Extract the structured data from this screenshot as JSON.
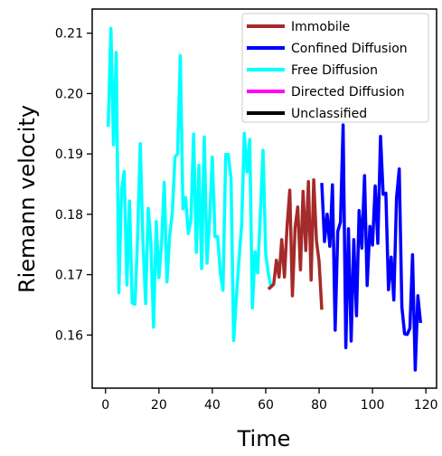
{
  "chart_data": {
    "type": "line",
    "title": "",
    "xlabel": "Time",
    "ylabel": "Riemann velocity",
    "xlim": [
      -5,
      124
    ],
    "ylim": [
      0.1512,
      0.214
    ],
    "xticks": [
      0,
      20,
      40,
      60,
      80,
      100,
      120
    ],
    "yticks": [
      0.16,
      0.17,
      0.18,
      0.19,
      0.2,
      0.21
    ],
    "xtick_labels": [
      "0",
      "20",
      "40",
      "60",
      "80",
      "100",
      "120"
    ],
    "ytick_labels": [
      "0.16",
      "0.17",
      "0.18",
      "0.19",
      "0.20",
      "0.21"
    ],
    "grid": false,
    "legend_position": "top-right",
    "legend": [
      {
        "label": "Immobile",
        "color": "#a52a2a"
      },
      {
        "label": "Confined Diffusion",
        "color": "#0000ff"
      },
      {
        "label": "Free Diffusion",
        "color": "#00ffff"
      },
      {
        "label": "Directed Diffusion",
        "color": "#ff00ff"
      },
      {
        "label": "Unclassified",
        "color": "#000000"
      }
    ],
    "series": [
      {
        "name": "Free Diffusion",
        "color": "#00ffff",
        "x": [
          1,
          2,
          3,
          4,
          5,
          6,
          7,
          8,
          9,
          10,
          11,
          12,
          13,
          14,
          15,
          16,
          17,
          18,
          19,
          20,
          21,
          22,
          23,
          24,
          25,
          26,
          27,
          28,
          29,
          30,
          31,
          32,
          33,
          34,
          35,
          36,
          37,
          38,
          39,
          40,
          41,
          42,
          43,
          44,
          45,
          46,
          47,
          48,
          49,
          50,
          51,
          52,
          53,
          54,
          55,
          56,
          57,
          58,
          59,
          60,
          61,
          62
        ],
        "y": [
          0.1945,
          0.2108,
          0.1915,
          0.2068,
          0.167,
          0.184,
          0.1871,
          0.1683,
          0.1822,
          0.1653,
          0.1651,
          0.1761,
          0.1917,
          0.1757,
          0.1652,
          0.181,
          0.1752,
          0.1613,
          0.1788,
          0.1695,
          0.1753,
          0.1853,
          0.1688,
          0.1764,
          0.1802,
          0.1895,
          0.19,
          0.2063,
          0.1809,
          0.1828,
          0.1768,
          0.1791,
          0.1933,
          0.1737,
          0.1881,
          0.171,
          0.1928,
          0.1719,
          0.1795,
          0.1895,
          0.1763,
          0.1763,
          0.1702,
          0.1674,
          0.1899,
          0.1899,
          0.1859,
          0.1591,
          0.1662,
          0.1724,
          0.1784,
          0.1934,
          0.187,
          0.1924,
          0.1645,
          0.1738,
          0.1703,
          0.1803,
          0.1906,
          0.1734,
          0.1702,
          0.1678
        ]
      },
      {
        "name": "Immobile",
        "color": "#a52a2a",
        "x": [
          61,
          62,
          63,
          64,
          65,
          66,
          67,
          68,
          69,
          70,
          71,
          72,
          73,
          74,
          75,
          76,
          77,
          78,
          79,
          80,
          81
        ],
        "y": [
          0.1676,
          0.168,
          0.1684,
          0.1724,
          0.1696,
          0.1758,
          0.1696,
          0.178,
          0.184,
          0.1665,
          0.1778,
          0.1812,
          0.1708,
          0.1838,
          0.174,
          0.1854,
          0.1691,
          0.1857,
          0.1756,
          0.1722,
          0.1642
        ]
      },
      {
        "name": "Confined Diffusion",
        "color": "#0000ff",
        "x": [
          81,
          82,
          83,
          84,
          85,
          86,
          87,
          88,
          89,
          90,
          91,
          92,
          93,
          94,
          95,
          96,
          97,
          98,
          99,
          100,
          101,
          102,
          103,
          104,
          105,
          106,
          107,
          108,
          109,
          110,
          111,
          112,
          113,
          114,
          115,
          116,
          117,
          118
        ],
        "y": [
          0.1852,
          0.1755,
          0.18,
          0.1747,
          0.1849,
          0.1608,
          0.1772,
          0.1787,
          0.1948,
          0.1579,
          0.1776,
          0.159,
          0.1758,
          0.1632,
          0.1806,
          0.1744,
          0.1864,
          0.1682,
          0.178,
          0.1749,
          0.1847,
          0.1752,
          0.1929,
          0.1833,
          0.1835,
          0.1675,
          0.1729,
          0.1658,
          0.1827,
          0.1875,
          0.1647,
          0.1602,
          0.1601,
          0.1611,
          0.1733,
          0.1542,
          0.1665,
          0.162
        ]
      }
    ]
  }
}
